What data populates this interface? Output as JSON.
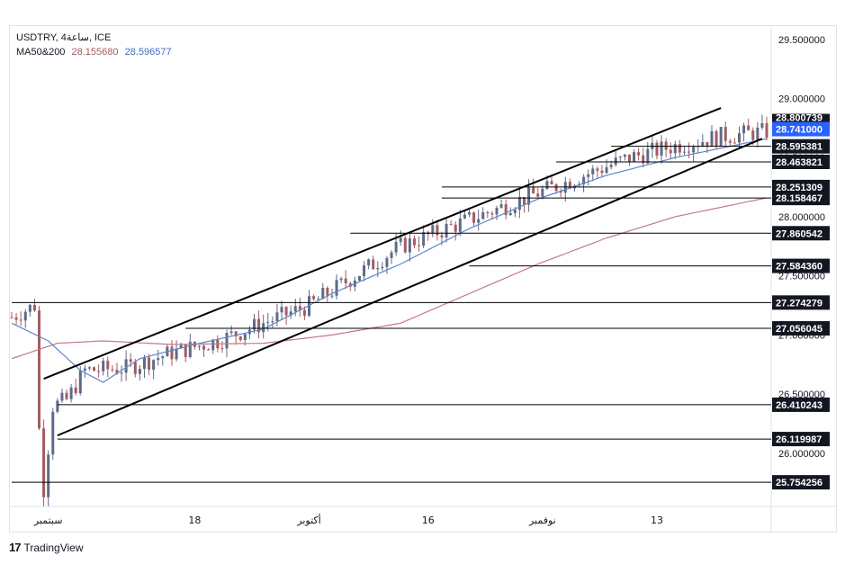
{
  "header": {
    "symbol": "USDTRY, 4ساعة, ICE",
    "ma_label": "MA50&200",
    "ma50_value": "28.155680",
    "ma200_value": "28.596577",
    "ma50_color": "#a35b62",
    "ma200_color": "#3d6cc1"
  },
  "footer": {
    "brand": "TradingView",
    "logo_icon": "tradingview-logo-icon"
  },
  "chart_data": {
    "type": "candlestick",
    "ylim": [
      25.55,
      29.62
    ],
    "y_ticks": [
      "29.500000",
      "29.000000",
      "28.500000",
      "28.000000",
      "27.500000",
      "27.000000",
      "26.500000",
      "26.000000"
    ],
    "y_tick_values": [
      29.5,
      29.0,
      28.5,
      28.0,
      27.5,
      27.0,
      26.5,
      26.0
    ],
    "x_ticks": [
      "سبتمبر",
      "18",
      "أكتوبر",
      "16",
      "نوفمبر",
      "13"
    ],
    "x_tick_bars": [
      8,
      40,
      65,
      91,
      116,
      141
    ],
    "bar_count": 166,
    "colors": {
      "up": "#5f6b86",
      "down": "#a35b62",
      "ma_short": "#5b86c8",
      "ma_long": "#c47a80",
      "price_label_bg": "#131722",
      "current_price_bg": "#2962ff",
      "channel": "#000000"
    },
    "current_price_label": "28.741000",
    "current_price": 28.741,
    "partial_label": "28.800739",
    "levels": [
      {
        "label": "28.595381",
        "value": 28.595381,
        "from_bar": 131
      },
      {
        "label": "28.463821",
        "value": 28.463821,
        "from_bar": 119
      },
      {
        "label": "28.251309",
        "value": 28.251309,
        "from_bar": 94
      },
      {
        "label": "28.158467",
        "value": 28.158467,
        "from_bar": 94
      },
      {
        "label": "27.860542",
        "value": 27.860542,
        "from_bar": 74
      },
      {
        "label": "27.584360",
        "value": 27.58436,
        "from_bar": 100
      },
      {
        "label": "27.274279",
        "value": 27.274279,
        "from_bar": 0
      },
      {
        "label": "27.056045",
        "value": 27.056045,
        "from_bar": 38
      },
      {
        "label": "26.410243",
        "value": 26.410243,
        "from_bar": 10
      },
      {
        "label": "26.119987",
        "value": 26.119987,
        "from_bar": 10
      },
      {
        "label": "25.754256",
        "value": 25.754256,
        "from_bar": 0
      }
    ],
    "channel_upper": [
      [
        7,
        26.63
      ],
      [
        155,
        28.92
      ]
    ],
    "channel_lower": [
      [
        10,
        26.15
      ],
      [
        164,
        28.66
      ]
    ],
    "price_anchors": [
      [
        0,
        27.15
      ],
      [
        5,
        27.25
      ],
      [
        6,
        26.2
      ],
      [
        7,
        25.7
      ],
      [
        9,
        26.4
      ],
      [
        12,
        26.45
      ],
      [
        16,
        26.7
      ],
      [
        25,
        26.72
      ],
      [
        35,
        26.85
      ],
      [
        45,
        26.95
      ],
      [
        55,
        27.1
      ],
      [
        65,
        27.25
      ],
      [
        75,
        27.5
      ],
      [
        85,
        27.75
      ],
      [
        95,
        27.9
      ],
      [
        105,
        28.05
      ],
      [
        115,
        28.2
      ],
      [
        125,
        28.35
      ],
      [
        135,
        28.5
      ],
      [
        145,
        28.6
      ],
      [
        155,
        28.68
      ],
      [
        165,
        28.72
      ]
    ],
    "ma_short_anchors": [
      [
        0,
        27.1
      ],
      [
        8,
        26.95
      ],
      [
        15,
        26.7
      ],
      [
        20,
        26.6
      ],
      [
        28,
        26.8
      ],
      [
        40,
        26.92
      ],
      [
        55,
        27.05
      ],
      [
        70,
        27.35
      ],
      [
        85,
        27.6
      ],
      [
        100,
        27.9
      ],
      [
        115,
        28.15
      ],
      [
        130,
        28.35
      ],
      [
        145,
        28.5
      ],
      [
        165,
        28.66
      ]
    ],
    "ma_long_anchors": [
      [
        0,
        26.8
      ],
      [
        10,
        26.93
      ],
      [
        20,
        26.95
      ],
      [
        35,
        26.92
      ],
      [
        55,
        26.93
      ],
      [
        70,
        27.0
      ],
      [
        85,
        27.1
      ],
      [
        100,
        27.35
      ],
      [
        115,
        27.6
      ],
      [
        130,
        27.82
      ],
      [
        145,
        28.0
      ],
      [
        165,
        28.16
      ]
    ]
  }
}
